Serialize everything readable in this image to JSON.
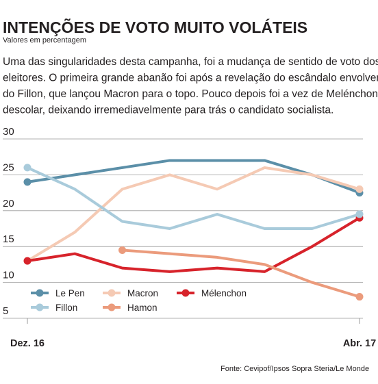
{
  "chart_data": {
    "type": "line",
    "title": "INTENÇÕES DE VOTO MUITO VOLÁTEIS",
    "subtitle": "Valores em percentagem",
    "description": [
      "Uma das singularidades desta campanha, foi a mudança de sentido de voto dos",
      "eleitores. O primeira grande abanão foi após a revelação do escândalo envolven-",
      "do Fillon, que lançou Macron para o topo. Pouco depois foi a vez de Melénchon",
      "descolar, deixando irremediavelmente para trás o candidato socialista."
    ],
    "categories": [
      "Dez. 16",
      null,
      null,
      null,
      null,
      null,
      null,
      "Abr. 17"
    ],
    "series": [
      {
        "name": "Le Pen",
        "color": "#5b8fa8",
        "values": [
          24,
          25,
          26,
          27,
          27,
          27,
          25,
          22.5
        ]
      },
      {
        "name": "Macron",
        "color": "#f5cab4",
        "values": [
          13,
          17,
          23,
          25,
          23,
          26,
          25,
          23
        ]
      },
      {
        "name": "Mélenchon",
        "color": "#d7232b",
        "values": [
          13,
          14,
          12,
          11.5,
          12,
          11.5,
          15,
          19
        ]
      },
      {
        "name": "Fillon",
        "color": "#a9cbdb",
        "values": [
          26,
          23,
          18.5,
          17.5,
          19.5,
          17.5,
          17.5,
          19.5
        ]
      },
      {
        "name": "Hamon",
        "color": "#eb9b7c",
        "values": [
          null,
          null,
          14.5,
          14,
          13.5,
          12.5,
          10,
          8
        ]
      }
    ],
    "ylim": [
      5,
      30
    ],
    "yticks": [
      5,
      10,
      15,
      20,
      25,
      30
    ],
    "grid": true,
    "source": "Fonte: Cevipof/Ipsos Sopra Steria/Le Monde"
  }
}
